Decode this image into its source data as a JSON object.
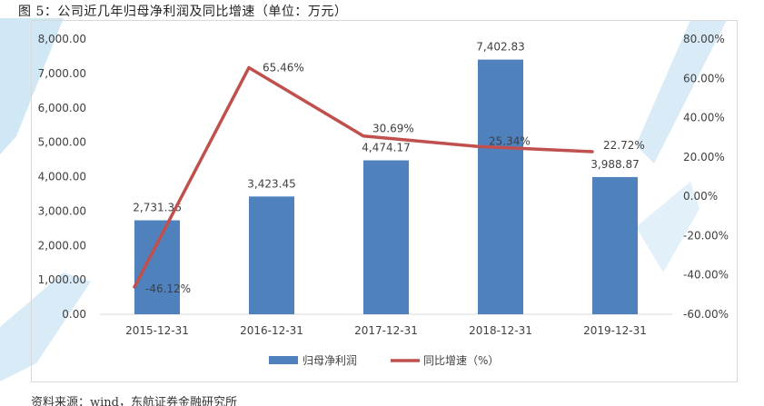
{
  "figure": {
    "title": "图 5：公司近几年归母净利润及同比增速（单位：万元）",
    "source_text": "资料来源：wind，东航证券金融研究所"
  },
  "colors": {
    "bar": "#4f81bd",
    "line": "#c0504d",
    "axis": "#d9d9d9",
    "text": "#404040",
    "watermark": "#a9d3ee"
  },
  "chart_data": {
    "type": "bar",
    "categories": [
      "2015-12-31",
      "2016-12-31",
      "2017-12-31",
      "2018-12-31",
      "2019-12-31"
    ],
    "series": [
      {
        "name": "归母净利润",
        "type": "bar",
        "axis": "left",
        "values": [
          2731.36,
          3423.45,
          4474.17,
          7402.83,
          3988.87
        ],
        "labels": [
          "2,731.36",
          "3,423.45",
          "4,474.17",
          "7,402.83",
          "3,988.87"
        ]
      },
      {
        "name": "同比增速（%）",
        "type": "line",
        "axis": "right",
        "values": [
          -46.12,
          65.46,
          30.69,
          25.34,
          22.72
        ],
        "labels": [
          "-46.12%",
          "65.46%",
          "30.69%",
          "25.34%",
          "22.72%"
        ]
      }
    ],
    "left_axis": {
      "ylim": [
        0,
        8000
      ],
      "ticks": [
        "0.00",
        "1,000.00",
        "2,000.00",
        "3,000.00",
        "4,000.00",
        "5,000.00",
        "6,000.00",
        "7,000.00",
        "8,000.00"
      ]
    },
    "right_axis": {
      "ylim": [
        -60,
        80
      ],
      "ticks": [
        "-60.00%",
        "-40.00%",
        "-20.00%",
        "0.00%",
        "20.00%",
        "40.00%",
        "60.00%",
        "80.00%"
      ]
    },
    "grid": false,
    "legend_position": "bottom-center"
  }
}
